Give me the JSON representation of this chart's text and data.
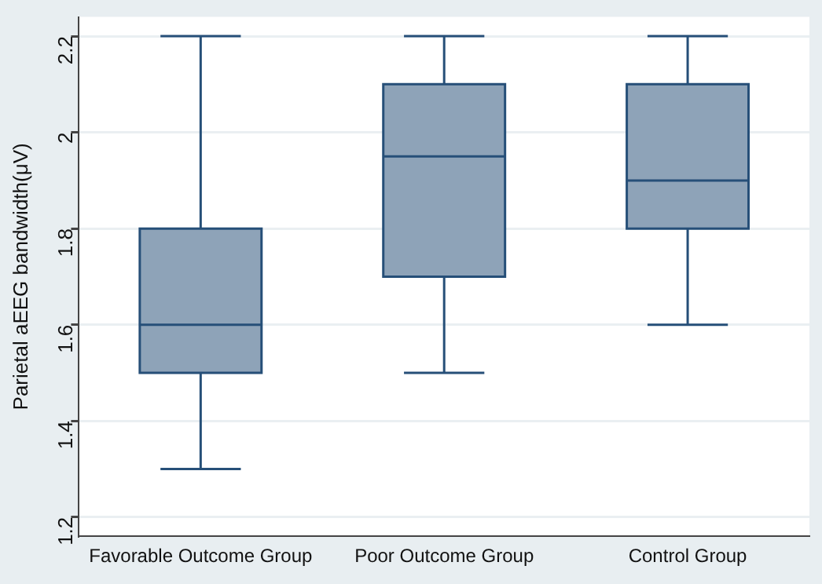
{
  "chart_data": {
    "type": "box",
    "ylabel": "Parietal aEEG bandwidth(μV)",
    "categories": [
      "Favorable Outcome Group",
      "Poor Outcome Group",
      "Control Group"
    ],
    "boxes": [
      {
        "low": 1.3,
        "q1": 1.5,
        "median": 1.6,
        "q3": 1.8,
        "high": 2.2
      },
      {
        "low": 1.5,
        "q1": 1.7,
        "median": 1.95,
        "q3": 2.1,
        "high": 2.2
      },
      {
        "low": 1.6,
        "q1": 1.8,
        "median": 1.9,
        "q3": 2.1,
        "high": 2.2
      }
    ],
    "color": "#8ea3b8",
    "ylim": [
      1.16,
      2.24
    ],
    "yticks": [
      1.2,
      1.4,
      1.6,
      1.8,
      2,
      2.2
    ],
    "grid": "y",
    "legend": false
  }
}
